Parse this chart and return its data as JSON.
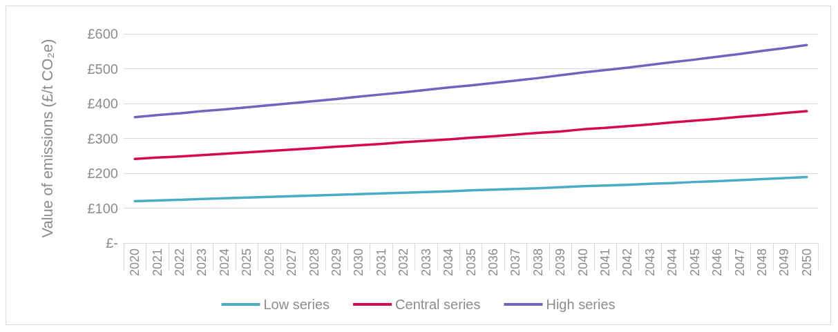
{
  "chart_data": {
    "type": "line",
    "ylabel": "Value of emissions (£/t CO₂e)",
    "categories": [
      "2020",
      "2021",
      "2022",
      "2023",
      "2024",
      "2025",
      "2026",
      "2027",
      "2028",
      "2029",
      "2030",
      "2031",
      "2032",
      "2033",
      "2034",
      "2035",
      "2036",
      "2037",
      "2038",
      "2039",
      "2040",
      "2041",
      "2042",
      "2043",
      "2044",
      "2045",
      "2046",
      "2047",
      "2048",
      "2049",
      "2050"
    ],
    "series": [
      {
        "name": "Low series",
        "color": "#4bacc6",
        "values": [
          120,
          122,
          124,
          126,
          128,
          130,
          132,
          134,
          136,
          138,
          140,
          142,
          144,
          146,
          148,
          151,
          153,
          155,
          157,
          160,
          163,
          165,
          167,
          170,
          172,
          175,
          177,
          180,
          183,
          186,
          189
        ]
      },
      {
        "name": "Central series",
        "color": "#d6094f",
        "values": [
          241,
          245,
          248,
          252,
          256,
          260,
          264,
          268,
          272,
          276,
          280,
          284,
          289,
          293,
          297,
          302,
          306,
          311,
          316,
          320,
          326,
          330,
          335,
          340,
          346,
          351,
          356,
          362,
          367,
          373,
          378
        ]
      },
      {
        "name": "High series",
        "color": "#7462c0",
        "values": [
          361,
          367,
          372,
          378,
          383,
          389,
          395,
          401,
          407,
          413,
          420,
          426,
          432,
          439,
          446,
          452,
          459,
          466,
          473,
          481,
          489,
          496,
          503,
          511,
          519,
          526,
          534,
          542,
          551,
          559,
          568
        ]
      }
    ],
    "ylim": [
      0,
      600
    ],
    "yticks": [
      {
        "value": 0,
        "label": "£-"
      },
      {
        "value": 100,
        "label": "£100"
      },
      {
        "value": 200,
        "label": "£200"
      },
      {
        "value": 300,
        "label": "£300"
      },
      {
        "value": 400,
        "label": "£400"
      },
      {
        "value": 500,
        "label": "£500"
      },
      {
        "value": 600,
        "label": "£600"
      }
    ],
    "grid": "y",
    "legend": "bottom",
    "marker": "none",
    "line_style": "solid"
  }
}
